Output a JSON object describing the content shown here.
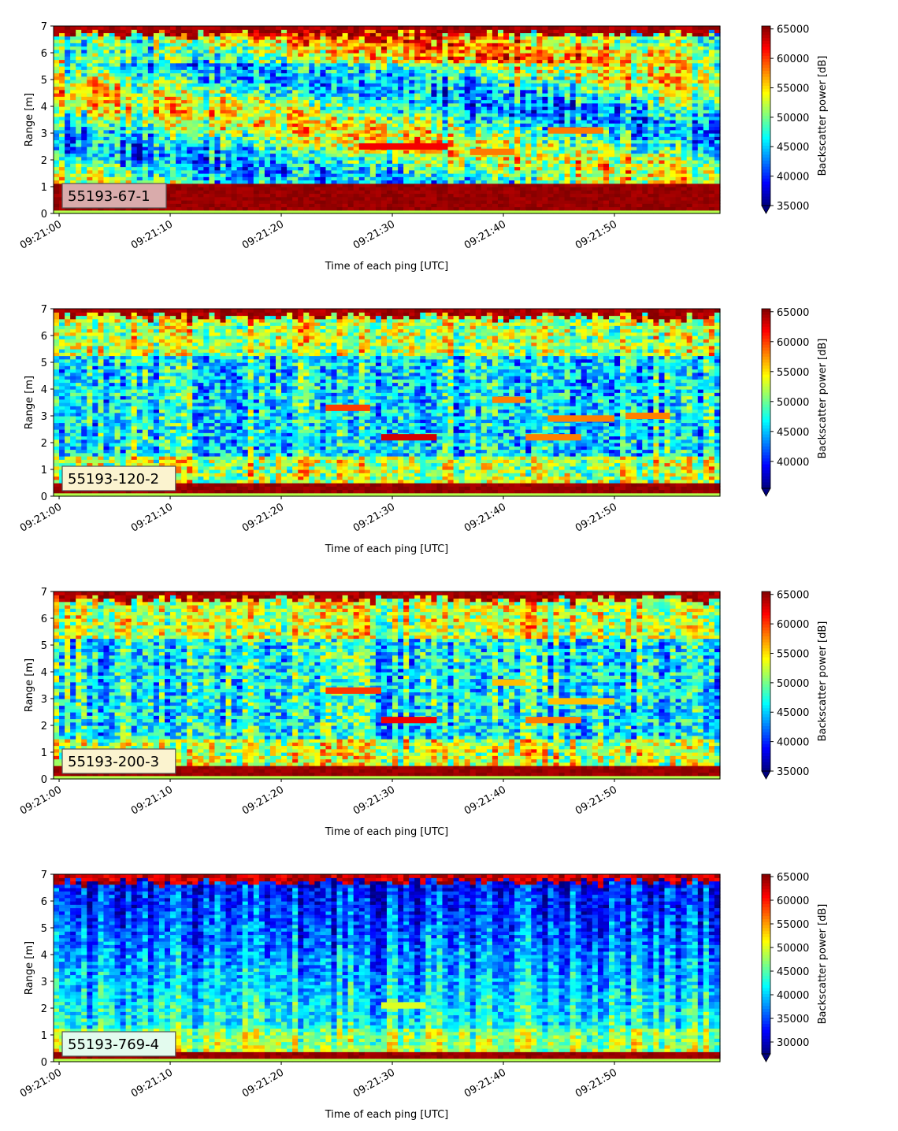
{
  "chart_data": [
    {
      "type": "heatmap",
      "panel_label": "55193-67-1",
      "label_box_color": "#d9abab",
      "xlabel": "Time of each ping [UTC]",
      "ylabel": "Range [m]",
      "x_ticks": [
        "09:21:00",
        "09:21:10",
        "09:21:20",
        "09:21:30",
        "09:21:40",
        "09:21:50"
      ],
      "xlim_seconds": [
        -0.5,
        59.5
      ],
      "ylim": [
        0,
        7
      ],
      "y_ticks": [
        0,
        1,
        2,
        3,
        4,
        5,
        6,
        7
      ],
      "colorbar_label": "Backscatter power [dB]",
      "colorbar_ticks": [
        35000,
        40000,
        45000,
        50000,
        55000,
        60000,
        65000
      ],
      "clim": [
        35000,
        65500
      ],
      "colormap": "jet",
      "bottom_band_m": 1.15,
      "features": [
        {
          "x_seconds": [
            27,
            35
          ],
          "range_m": 2.5,
          "value": 62000
        },
        {
          "x_seconds": [
            37,
            41
          ],
          "range_m": 2.3,
          "value": 58000
        },
        {
          "x_seconds": [
            44,
            49
          ],
          "range_m": 3.1,
          "value": 58000
        }
      ]
    },
    {
      "type": "heatmap",
      "panel_label": "55193-120-2",
      "label_box_color": "#fbf3cf",
      "xlabel": "Time of each ping [UTC]",
      "ylabel": "Range [m]",
      "x_ticks": [
        "09:21:00",
        "09:21:10",
        "09:21:20",
        "09:21:30",
        "09:21:40",
        "09:21:50"
      ],
      "xlim_seconds": [
        -0.5,
        59.5
      ],
      "ylim": [
        0,
        7
      ],
      "y_ticks": [
        0,
        1,
        2,
        3,
        4,
        5,
        6,
        7
      ],
      "colorbar_label": "Backscatter power [dB]",
      "colorbar_ticks": [
        40000,
        45000,
        50000,
        55000,
        60000,
        65000
      ],
      "clim": [
        35500,
        65500
      ],
      "colormap": "jet",
      "bottom_band_m": 0.55,
      "features": [
        {
          "x_seconds": [
            24,
            28
          ],
          "range_m": 3.3,
          "value": 60000
        },
        {
          "x_seconds": [
            29,
            34
          ],
          "range_m": 2.2,
          "value": 63000
        },
        {
          "x_seconds": [
            39,
            42
          ],
          "range_m": 3.6,
          "value": 58000
        },
        {
          "x_seconds": [
            42,
            47
          ],
          "range_m": 2.2,
          "value": 58000
        },
        {
          "x_seconds": [
            44,
            50
          ],
          "range_m": 2.9,
          "value": 58000
        },
        {
          "x_seconds": [
            51,
            55
          ],
          "range_m": 3.0,
          "value": 58000
        }
      ]
    },
    {
      "type": "heatmap",
      "panel_label": "55193-200-3",
      "label_box_color": "#fbf3cf",
      "xlabel": "Time of each ping [UTC]",
      "ylabel": "Range [m]",
      "x_ticks": [
        "09:21:00",
        "09:21:10",
        "09:21:20",
        "09:21:30",
        "09:21:40",
        "09:21:50"
      ],
      "xlim_seconds": [
        -0.5,
        59.5
      ],
      "ylim": [
        0,
        7
      ],
      "y_ticks": [
        0,
        1,
        2,
        3,
        4,
        5,
        6,
        7
      ],
      "colorbar_label": "Backscatter power [dB]",
      "colorbar_ticks": [
        35000,
        40000,
        45000,
        50000,
        55000,
        60000,
        65000
      ],
      "clim": [
        35000,
        65500
      ],
      "colormap": "jet",
      "bottom_band_m": 0.5,
      "features": [
        {
          "x_seconds": [
            24,
            29
          ],
          "range_m": 3.3,
          "value": 60000
        },
        {
          "x_seconds": [
            29,
            34
          ],
          "range_m": 2.2,
          "value": 62000
        },
        {
          "x_seconds": [
            39,
            42
          ],
          "range_m": 3.6,
          "value": 56000
        },
        {
          "x_seconds": [
            42,
            47
          ],
          "range_m": 2.2,
          "value": 58000
        },
        {
          "x_seconds": [
            44,
            50
          ],
          "range_m": 2.9,
          "value": 56000
        }
      ]
    },
    {
      "type": "heatmap",
      "panel_label": "55193-769-4",
      "label_box_color": "#e3fbee",
      "xlabel": "Time of each ping [UTC]",
      "ylabel": "Range [m]",
      "x_ticks": [
        "09:21:00",
        "09:21:10",
        "09:21:20",
        "09:21:30",
        "09:21:40",
        "09:21:50"
      ],
      "xlim_seconds": [
        -0.5,
        59.5
      ],
      "ylim": [
        0,
        7
      ],
      "y_ticks": [
        0,
        1,
        2,
        3,
        4,
        5,
        6,
        7
      ],
      "colorbar_label": "Backscatter power [dB]",
      "colorbar_ticks": [
        30000,
        35000,
        40000,
        45000,
        50000,
        55000,
        60000,
        65000
      ],
      "clim": [
        27500,
        65500
      ],
      "colormap": "jet",
      "bottom_band_m": 0.35,
      "features": [
        {
          "x_seconds": [
            29,
            33
          ],
          "range_m": 2.1,
          "value": 50000
        }
      ]
    }
  ]
}
